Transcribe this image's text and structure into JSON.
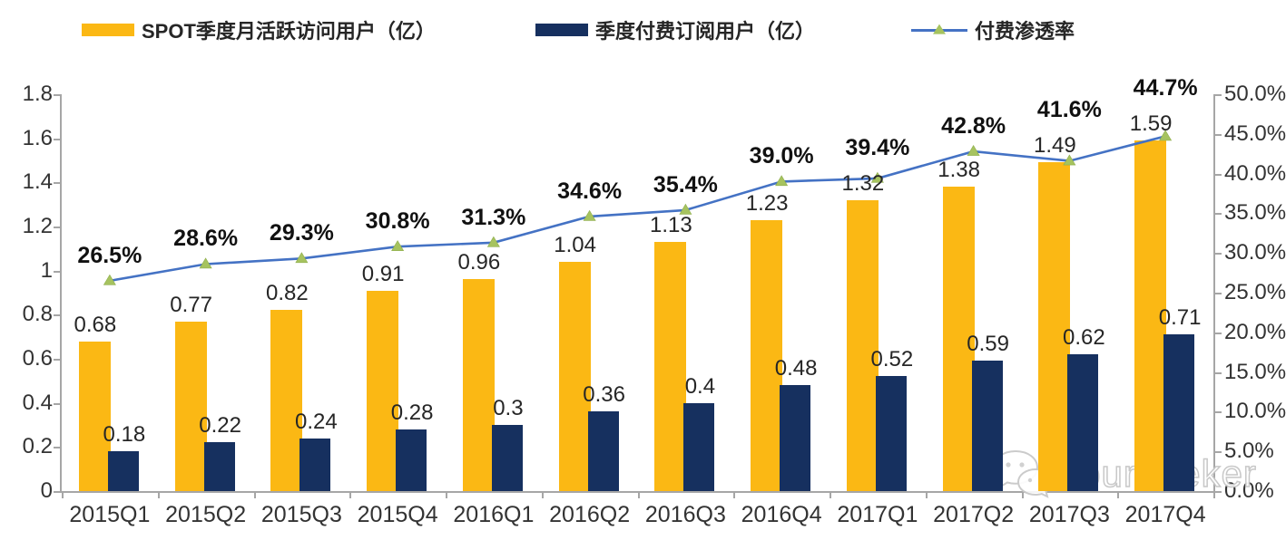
{
  "legend": [
    {
      "label": "SPOT季度月活跃访问用户（亿）"
    },
    {
      "label": "季度付费订阅用户（亿）"
    },
    {
      "label": "付费渗透率"
    }
  ],
  "chart_data": {
    "type": "combo-bar-line",
    "categories": [
      "2015Q1",
      "2015Q2",
      "2015Q3",
      "2015Q4",
      "2016Q1",
      "2016Q2",
      "2016Q3",
      "2016Q4",
      "2017Q1",
      "2017Q2",
      "2017Q3",
      "2017Q4"
    ],
    "series": [
      {
        "name": "SPOT季度月活跃访问用户（亿）",
        "type": "bar",
        "axis": "left",
        "color": "#FBB814",
        "values": [
          0.68,
          0.77,
          0.82,
          0.91,
          0.96,
          1.04,
          1.13,
          1.23,
          1.32,
          1.38,
          1.49,
          1.59
        ],
        "labels": [
          "0.68",
          "0.77",
          "0.82",
          "0.91",
          "0.96",
          "1.04",
          "1.13",
          "1.23",
          "1.32",
          "1.38",
          "1.49",
          "1.59"
        ]
      },
      {
        "name": "季度付费订阅用户（亿）",
        "type": "bar",
        "axis": "left",
        "color": "#16305F",
        "values": [
          0.18,
          0.22,
          0.24,
          0.28,
          0.3,
          0.36,
          0.4,
          0.48,
          0.52,
          0.59,
          0.62,
          0.71
        ],
        "labels": [
          "0.18",
          "0.22",
          "0.24",
          "0.28",
          "0.3",
          "0.36",
          "0.4",
          "0.48",
          "0.52",
          "0.59",
          "0.62",
          "0.71"
        ]
      },
      {
        "name": "付费渗透率",
        "type": "line",
        "axis": "right",
        "color": "#4472C4",
        "marker": "triangle",
        "marker_color": "#A6C35F",
        "values": [
          26.5,
          28.6,
          29.3,
          30.8,
          31.3,
          34.6,
          35.4,
          39.0,
          39.4,
          42.8,
          41.6,
          44.7
        ],
        "labels": [
          "26.5%",
          "28.6%",
          "29.3%",
          "30.8%",
          "31.3%",
          "34.6%",
          "35.4%",
          "39.0%",
          "39.4%",
          "42.8%",
          "41.6%",
          "44.7%"
        ]
      }
    ],
    "left_axis": {
      "min": 0,
      "max": 1.8,
      "step": 0.2,
      "ticks": [
        "0",
        "0.2",
        "0.4",
        "0.6",
        "0.8",
        "1",
        "1.2",
        "1.4",
        "1.6",
        "1.8"
      ]
    },
    "right_axis": {
      "min": 0,
      "max": 50,
      "step": 5,
      "ticks": [
        "0.0%",
        "5.0%",
        "10.0%",
        "15.0%",
        "20.0%",
        "25.0%",
        "30.0%",
        "35.0%",
        "40.0%",
        "45.0%",
        "50.0%"
      ]
    },
    "grid": false,
    "legend_position": "top",
    "title": ""
  },
  "watermark": {
    "label": "Yourseeker",
    "icon": "wechat-icon"
  }
}
